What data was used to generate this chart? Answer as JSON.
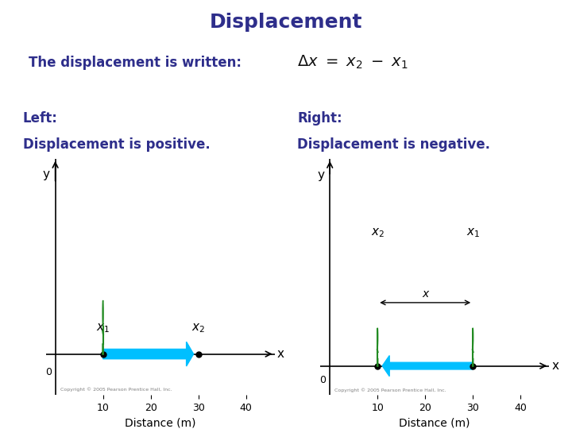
{
  "title": "Displacement",
  "title_color": "#2E2E8B",
  "title_fontsize": 18,
  "written_label": "The displacement is written:",
  "left_label": "Left:",
  "right_label": "Right:",
  "left_sub": "Displacement is positive.",
  "right_sub": "Displacement is negative.",
  "text_color": "#2E2E8B",
  "arrow_color": "#00BFFF",
  "bg_color": "#FFFFFF",
  "xmax": 45,
  "xlabel": "Distance (m)",
  "copyright_left": "Copyright © 2005 Pearson Prentice Hall, Inc.",
  "copyright_right": "Copyright © 2005 Pearson Prentice Hall, Inc."
}
